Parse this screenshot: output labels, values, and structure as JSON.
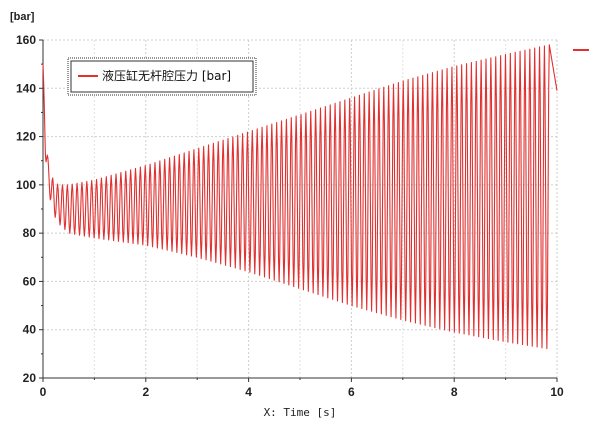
{
  "chart_data": {
    "type": "line",
    "y_unit_label": "[bar]",
    "xlabel": "X: Time [s]",
    "xlim": [
      0,
      10
    ],
    "ylim": [
      20,
      160
    ],
    "x_ticks": [
      "0",
      "2",
      "4",
      "6",
      "8",
      "10"
    ],
    "y_ticks": [
      "20",
      "40",
      "60",
      "80",
      "100",
      "120",
      "140",
      "160"
    ],
    "grid": true,
    "legend_position": "top-left",
    "series": [
      {
        "name": "液压缸无杆腔压力 [bar]",
        "color": "#e03030",
        "oscillation_cycles": 104,
        "upper_envelope": {
          "x": [
            0,
            0.05,
            0.1,
            0.2,
            0.3,
            0.5,
            1,
            2,
            3,
            4,
            5,
            6,
            7,
            8,
            9,
            9.85
          ],
          "y": [
            150,
            122,
            110,
            102,
            100,
            100,
            102,
            108,
            115,
            122,
            129,
            136,
            143,
            149,
            154,
            158
          ]
        },
        "lower_envelope": {
          "x": [
            0,
            0.05,
            0.1,
            0.2,
            0.3,
            0.5,
            1,
            2,
            3,
            4,
            5,
            6,
            7,
            8,
            9,
            9.85
          ],
          "y": [
            150,
            110,
            98,
            88,
            84,
            80,
            78,
            75,
            70,
            64,
            57,
            50,
            44,
            39,
            35,
            32
          ]
        },
        "end_value": 139
      }
    ]
  }
}
